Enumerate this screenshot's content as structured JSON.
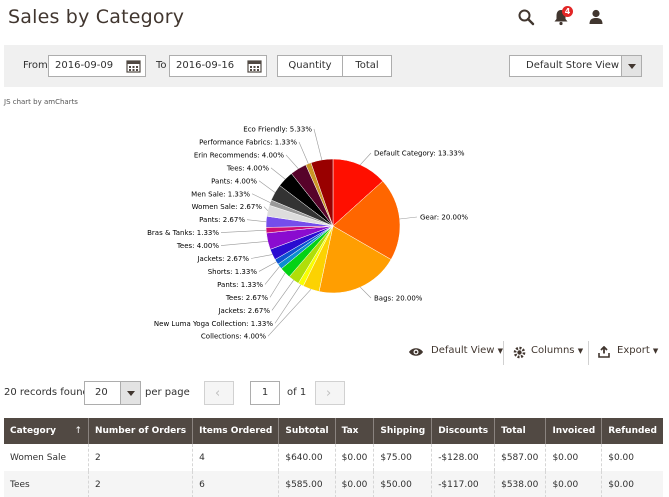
{
  "page": {
    "title": "Sales by Category"
  },
  "header": {
    "notifications_count": "4"
  },
  "filters": {
    "from_label": "From",
    "from_value": "2016-09-09",
    "to_label": "To",
    "to_value": "2016-09-16",
    "quantity_label": "Quantity",
    "total_label": "Total",
    "store_view": "Default Store View"
  },
  "chart_credit": "JS chart by amCharts",
  "chart_data": {
    "type": "pie",
    "slices": [
      {
        "label": "Default Category",
        "value": 13.33,
        "text": "Default Category: 13.33%",
        "color": "#FF0F00"
      },
      {
        "label": "Gear",
        "value": 20.0,
        "text": "Gear: 20.00%",
        "color": "#FF6600"
      },
      {
        "label": "Bags",
        "value": 20.0,
        "text": "Bags: 20.00%",
        "color": "#FF9E01"
      },
      {
        "label": "Collections",
        "value": 4.0,
        "text": "Collections: 4.00%",
        "color": "#FCD202"
      },
      {
        "label": "New Luma Yoga Collection",
        "value": 1.33,
        "text": "New Luma Yoga Collection: 1.33%",
        "color": "#F8FF01"
      },
      {
        "label": "Jackets",
        "value": 2.67,
        "text": "Jackets: 2.67%",
        "color": "#B0DE09"
      },
      {
        "label": "Tees",
        "value": 2.67,
        "text": "Tees: 2.67%",
        "color": "#04D215"
      },
      {
        "label": "Pants",
        "value": 1.33,
        "text": "Pants: 1.33%",
        "color": "#0D8ECF"
      },
      {
        "label": "Shorts",
        "value": 1.33,
        "text": "Shorts: 1.33%",
        "color": "#0D52D1"
      },
      {
        "label": "Jackets",
        "value": 2.67,
        "text": "Jackets: 2.67%",
        "color": "#2A0CD0"
      },
      {
        "label": "Tees",
        "value": 4.0,
        "text": "Tees: 4.00%",
        "color": "#8A0CCF"
      },
      {
        "label": "Bras & Tanks",
        "value": 1.33,
        "text": "Bras & Tanks: 1.33%",
        "color": "#CD0D74"
      },
      {
        "label": "Pants",
        "value": 2.67,
        "text": "Pants: 2.67%",
        "color": "#754DEB"
      },
      {
        "label": "Women Sale",
        "value": 2.67,
        "text": "Women Sale: 2.67%",
        "color": "#DDDDDD"
      },
      {
        "label": "Men Sale",
        "value": 1.33,
        "text": "Men Sale: 1.33%",
        "color": "#999999"
      },
      {
        "label": "Pants",
        "value": 4.0,
        "text": "Pants: 4.00%",
        "color": "#333333"
      },
      {
        "label": "Tees",
        "value": 4.0,
        "text": "Tees: 4.00%",
        "color": "#000000"
      },
      {
        "label": "Erin Recommends",
        "value": 4.0,
        "text": "Erin Recommends: 4.00%",
        "color": "#57032A"
      },
      {
        "label": "Performance Fabrics",
        "value": 1.33,
        "text": "Performance Fabrics: 1.33%",
        "color": "#CA9726"
      },
      {
        "label": "Eco Friendly",
        "value": 5.33,
        "text": "Eco Friendly: 5.33%",
        "color": "#990000"
      }
    ]
  },
  "toolbar": {
    "default_view": "Default View",
    "columns": "Columns",
    "export": "Export"
  },
  "pager": {
    "records_found": "20 records found",
    "per_page_value": "20",
    "per_page_label": "per page",
    "current_page": "1",
    "of_pages": "of 1",
    "prev": "‹",
    "next": "›"
  },
  "grid": {
    "sort_indicator": "↑",
    "columns": [
      "Category",
      "Number of Orders",
      "Items Ordered",
      "Subtotal",
      "Tax",
      "Shipping",
      "Discounts",
      "Total",
      "Invoiced",
      "Refunded"
    ],
    "rows": [
      [
        "Women Sale",
        "2",
        "4",
        "$640.00",
        "$0.00",
        "$75.00",
        "-$128.00",
        "$587.00",
        "$0.00",
        "$0.00"
      ],
      [
        "Tees",
        "2",
        "6",
        "$585.00",
        "$0.00",
        "$50.00",
        "-$117.00",
        "$538.00",
        "$0.00",
        "$0.00"
      ]
    ]
  }
}
